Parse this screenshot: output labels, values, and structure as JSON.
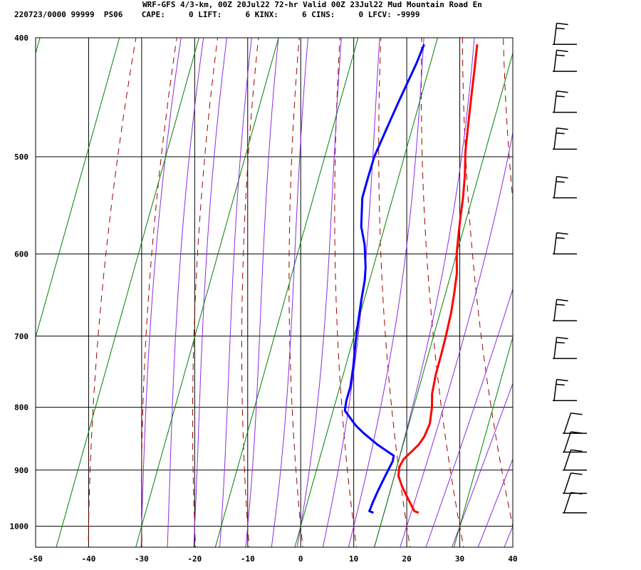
{
  "header": {
    "line1": "WRF-GFS 4/3-km, 00Z 20Jul22 72-hr Valid 00Z 23Jul22 Mud Mountain Road En",
    "line2": "220723/0000 99999  PS06    CAPE:     0 LIFT:     6 KINX:     6 CINS:     0 LFCV: -9999"
  },
  "chart_data": {
    "type": "skew-t",
    "xlim": [
      -50,
      40
    ],
    "ylim_hpa": [
      1040,
      400
    ],
    "x_ticks": [
      -50,
      -40,
      -30,
      -20,
      -10,
      0,
      10,
      20,
      30,
      40
    ],
    "y_ticks": [
      400,
      500,
      600,
      700,
      800,
      900,
      1000
    ],
    "grid": true,
    "colors": {
      "temperature": "#ff0000",
      "dewpoint": "#0000ff",
      "dry_adiabat": "#a00000",
      "moist_adiabat": "#8b2be2",
      "mixing_ratio": "#008000",
      "grid": "#000000"
    },
    "series": [
      {
        "name": "Temperature",
        "points": [
          [
            20.5,
            975
          ],
          [
            19.5,
            972
          ],
          [
            18,
            960
          ],
          [
            16.5,
            948
          ],
          [
            14,
            928
          ],
          [
            12,
            910
          ],
          [
            11,
            895
          ],
          [
            10.8,
            882
          ],
          [
            11.3,
            870
          ],
          [
            11.8,
            858
          ],
          [
            11.8,
            845
          ],
          [
            11.2,
            825
          ],
          [
            9.5,
            800
          ],
          [
            7.8,
            780
          ],
          [
            6,
            752
          ],
          [
            4.5,
            725
          ],
          [
            3,
            700
          ],
          [
            1,
            670
          ],
          [
            -1,
            645
          ],
          [
            -3,
            622
          ],
          [
            -5.5,
            600
          ],
          [
            -7.5,
            580
          ],
          [
            -9.5,
            560
          ],
          [
            -11.5,
            540
          ],
          [
            -14,
            518
          ],
          [
            -17,
            495
          ],
          [
            -20,
            470
          ],
          [
            -23,
            446
          ],
          [
            -26,
            423
          ],
          [
            -28.5,
            405
          ]
        ]
      },
      {
        "name": "Dewpoint",
        "points": [
          [
            12,
            975
          ],
          [
            11,
            972
          ],
          [
            10.5,
            955
          ],
          [
            10,
            935
          ],
          [
            9.5,
            910
          ],
          [
            9,
            885
          ],
          [
            8.5,
            876
          ],
          [
            4,
            858
          ],
          [
            0,
            840
          ],
          [
            -2.5,
            828
          ],
          [
            -6.5,
            805
          ],
          [
            -7.5,
            790
          ],
          [
            -8.5,
            770
          ],
          [
            -10.5,
            742
          ],
          [
            -13.5,
            705
          ],
          [
            -15.5,
            680
          ],
          [
            -17.5,
            655
          ],
          [
            -19.5,
            630
          ],
          [
            -21,
            615
          ],
          [
            -24,
            590
          ],
          [
            -27,
            570
          ],
          [
            -30.5,
            540
          ],
          [
            -32,
            520
          ],
          [
            -33.5,
            500
          ],
          [
            -35,
            470
          ],
          [
            -36,
            450
          ],
          [
            -37.5,
            420
          ],
          [
            -38.5,
            405
          ]
        ]
      }
    ],
    "wind_barbs_hpa": [
      405,
      426,
      460,
      493,
      540,
      600,
      680,
      730,
      790,
      840,
      870,
      900,
      940,
      975
    ]
  }
}
